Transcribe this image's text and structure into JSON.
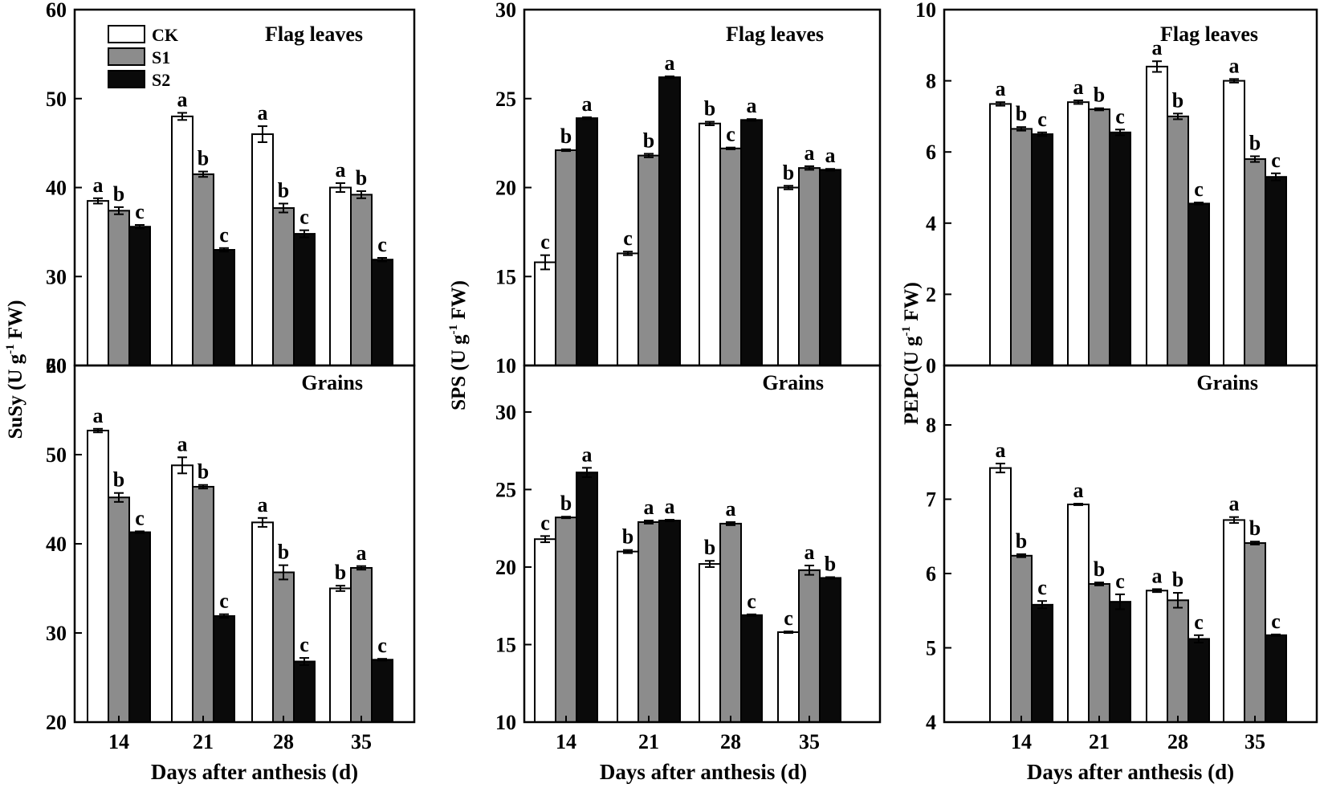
{
  "chart_data": [
    {
      "type": "bar",
      "panel": "susy-flag-leaves",
      "title": "Flag leaves",
      "categories": [
        "14",
        "21",
        "28",
        "35"
      ],
      "ylim": [
        20,
        60
      ],
      "yticks": [
        "20",
        "30",
        "40",
        "50",
        "60"
      ],
      "series": [
        {
          "name": "CK",
          "values": [
            38.5,
            48.0,
            46.0,
            40.0
          ],
          "errors": [
            0.3,
            0.4,
            0.9,
            0.5
          ],
          "letters": [
            "a",
            "a",
            "a",
            "a"
          ]
        },
        {
          "name": "S1",
          "values": [
            37.4,
            41.5,
            37.7,
            39.2
          ],
          "errors": [
            0.4,
            0.3,
            0.5,
            0.4
          ],
          "letters": [
            "b",
            "b",
            "b",
            "b"
          ]
        },
        {
          "name": "S2",
          "values": [
            35.6,
            33.0,
            34.8,
            31.9
          ],
          "errors": [
            0.2,
            0.2,
            0.4,
            0.2
          ],
          "letters": [
            "c",
            "c",
            "c",
            "c"
          ]
        }
      ]
    },
    {
      "type": "bar",
      "panel": "sps-flag-leaves",
      "title": "Flag leaves",
      "categories": [
        "14",
        "21",
        "28",
        "35"
      ],
      "ylim": [
        10,
        30
      ],
      "yticks": [
        "10",
        "15",
        "20",
        "25",
        "30"
      ],
      "series": [
        {
          "name": "CK",
          "values": [
            15.8,
            16.3,
            23.6,
            20.0
          ],
          "errors": [
            0.4,
            0.1,
            0.1,
            0.1
          ],
          "letters": [
            "c",
            "c",
            "b",
            "b"
          ]
        },
        {
          "name": "S1",
          "values": [
            22.1,
            21.8,
            22.2,
            21.1
          ],
          "errors": [
            0.05,
            0.1,
            0.05,
            0.1
          ],
          "letters": [
            "b",
            "b",
            "c",
            "a"
          ]
        },
        {
          "name": "S2",
          "values": [
            23.9,
            26.2,
            23.8,
            21.0
          ],
          "errors": [
            0.05,
            0.05,
            0.05,
            0.05
          ],
          "letters": [
            "a",
            "a",
            "a",
            "a"
          ]
        }
      ]
    },
    {
      "type": "bar",
      "panel": "pepc-flag-leaves",
      "title": "Flag leaves",
      "categories": [
        "14",
        "21",
        "28",
        "35"
      ],
      "ylim": [
        0,
        10
      ],
      "yticks": [
        "0",
        "2",
        "4",
        "6",
        "8",
        "10"
      ],
      "series": [
        {
          "name": "CK",
          "values": [
            7.35,
            7.4,
            8.4,
            8.0
          ],
          "errors": [
            0.05,
            0.05,
            0.15,
            0.05
          ],
          "letters": [
            "a",
            "a",
            "a",
            "a"
          ]
        },
        {
          "name": "S1",
          "values": [
            6.65,
            7.2,
            7.0,
            5.8
          ],
          "errors": [
            0.05,
            0.03,
            0.08,
            0.08
          ],
          "letters": [
            "b",
            "b",
            "b",
            "b"
          ]
        },
        {
          "name": "S2",
          "values": [
            6.5,
            6.55,
            4.55,
            5.3
          ],
          "errors": [
            0.05,
            0.08,
            0.03,
            0.1
          ],
          "letters": [
            "c",
            "c",
            "c",
            "c"
          ]
        }
      ]
    },
    {
      "type": "bar",
      "panel": "susy-grains",
      "title": "Grains",
      "categories": [
        "14",
        "21",
        "28",
        "35"
      ],
      "ylim": [
        20,
        60
      ],
      "yticks": [
        "20",
        "30",
        "40",
        "50",
        "60"
      ],
      "series": [
        {
          "name": "CK",
          "values": [
            52.7,
            48.8,
            42.4,
            35.0
          ],
          "errors": [
            0.2,
            0.9,
            0.5,
            0.3
          ],
          "letters": [
            "a",
            "a",
            "a",
            "b"
          ]
        },
        {
          "name": "S1",
          "values": [
            45.2,
            46.4,
            36.8,
            37.3
          ],
          "errors": [
            0.5,
            0.2,
            0.8,
            0.2
          ],
          "letters": [
            "b",
            "b",
            "b",
            "a"
          ]
        },
        {
          "name": "S2",
          "values": [
            41.3,
            31.9,
            26.8,
            27.0
          ],
          "errors": [
            0.1,
            0.2,
            0.4,
            0.1
          ],
          "letters": [
            "c",
            "c",
            "c",
            "c"
          ]
        }
      ]
    },
    {
      "type": "bar",
      "panel": "sps-grains",
      "title": "Grains",
      "categories": [
        "14",
        "21",
        "28",
        "35"
      ],
      "ylim": [
        10,
        33
      ],
      "yticks": [
        "10",
        "15",
        "20",
        "25",
        "30"
      ],
      "series": [
        {
          "name": "CK",
          "values": [
            21.8,
            21.0,
            20.2,
            15.8
          ],
          "errors": [
            0.2,
            0.1,
            0.2,
            0.05
          ],
          "letters": [
            "c",
            "b",
            "b",
            "c"
          ]
        },
        {
          "name": "S1",
          "values": [
            23.2,
            22.9,
            22.8,
            19.8
          ],
          "errors": [
            0.05,
            0.1,
            0.1,
            0.3
          ],
          "letters": [
            "b",
            "a",
            "a",
            "a"
          ]
        },
        {
          "name": "S2",
          "values": [
            26.1,
            23.0,
            16.9,
            19.3
          ],
          "errors": [
            0.3,
            0.05,
            0.05,
            0.05
          ],
          "letters": [
            "a",
            "a",
            "c",
            "b"
          ]
        }
      ]
    },
    {
      "type": "bar",
      "panel": "pepc-grains",
      "title": "Grains",
      "categories": [
        "14",
        "21",
        "28",
        "35"
      ],
      "ylim": [
        4,
        8.8
      ],
      "yticks": [
        "4",
        "5",
        "6",
        "7",
        "8"
      ],
      "series": [
        {
          "name": "CK",
          "values": [
            7.42,
            6.93,
            5.77,
            6.72
          ],
          "errors": [
            0.06,
            0.01,
            0.02,
            0.04
          ],
          "letters": [
            "a",
            "a",
            "a",
            "a"
          ]
        },
        {
          "name": "S1",
          "values": [
            6.24,
            5.86,
            5.64,
            6.41
          ],
          "errors": [
            0.02,
            0.02,
            0.1,
            0.02
          ],
          "letters": [
            "b",
            "b",
            "b",
            "b"
          ]
        },
        {
          "name": "S2",
          "values": [
            5.58,
            5.62,
            5.12,
            5.17
          ],
          "errors": [
            0.05,
            0.1,
            0.05,
            0.01
          ],
          "letters": [
            "c",
            "c",
            "c",
            "c"
          ]
        }
      ]
    }
  ],
  "figure": {
    "ylabels": {
      "susy": "SuSy (U g-1 FW)",
      "sps": "SPS (U g-1 FW)",
      "pepc": "PEPC(U g-1 FW)"
    },
    "ylabel_parts": {
      "susy": {
        "pre": "SuSy (U g",
        "sup": "-1",
        "post": " FW)"
      },
      "sps": {
        "pre": "SPS (U g",
        "sup": "-1",
        "post": " FW)"
      },
      "pepc": {
        "pre": "PEPC(U g",
        "sup": "-1",
        "post": " FW)"
      }
    },
    "xlabel": "Days after anthesis (d)",
    "legend": [
      "CK",
      "S1",
      "S2"
    ],
    "colors": {
      "CK": "#ffffff",
      "S1": "#8c8c8c",
      "S2": "#0a0a0a",
      "axis": "#000000"
    }
  }
}
